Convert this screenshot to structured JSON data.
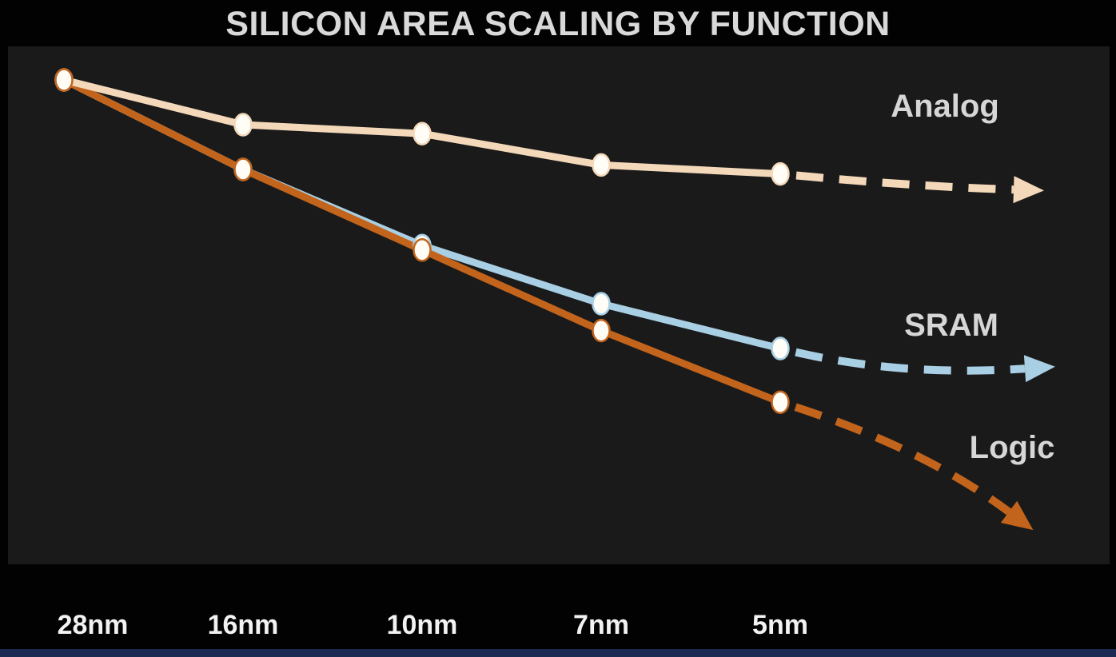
{
  "chart_data": {
    "type": "line",
    "title": "SILICON AREA SCALING BY FUNCTION",
    "xlabel": "",
    "ylabel": "",
    "categories": [
      "28nm",
      "16nm",
      "10nm",
      "7nm",
      "5nm"
    ],
    "ylim": [
      0,
      1.05
    ],
    "grid": false,
    "legend_position": "inline-right",
    "background": "#1a1a1a",
    "outer_background": "#020202",
    "marker": {
      "shape": "ellipse",
      "fill": "#fffdf6"
    },
    "series": [
      {
        "name": "Analog",
        "color": "#f3d8ba",
        "values": [
          1.0,
          0.9,
          0.88,
          0.81,
          0.79
        ],
        "projection_end_value": 0.755,
        "projection_style": "dashed-arrow"
      },
      {
        "name": "SRAM",
        "color": "#a9cfe4",
        "values": [
          1.0,
          0.8,
          0.63,
          0.5,
          0.4
        ],
        "projection_end_value": 0.355,
        "projection_style": "dashed-arrow"
      },
      {
        "name": "Logic",
        "color": "#c2641c",
        "values": [
          1.0,
          0.8,
          0.62,
          0.44,
          0.28
        ],
        "projection_end_value": 0.035,
        "projection_style": "dashed-arrow"
      }
    ]
  }
}
